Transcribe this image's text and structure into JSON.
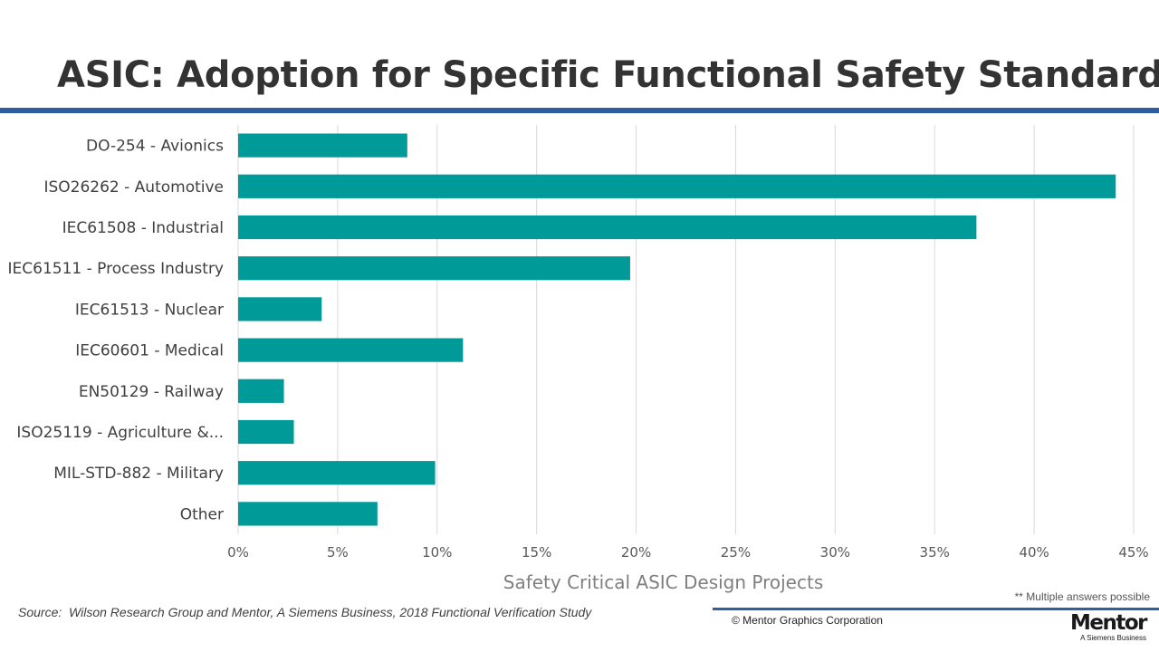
{
  "title": "ASIC: Adoption for Specific Functional Safety Standards",
  "chart_data": {
    "type": "bar",
    "orientation": "horizontal",
    "categories": [
      "DO-254 - Avionics",
      "ISO26262 - Automotive",
      "IEC61508 - Industrial",
      "IEC61511 - Process Industry",
      "IEC61513 - Nuclear",
      "IEC60601 - Medical",
      "EN50129 - Railway",
      "ISO25119 - Agriculture &...",
      "MIL-STD-882 - Military",
      "Other"
    ],
    "values": [
      8.5,
      44.1,
      37.1,
      19.7,
      4.2,
      11.3,
      2.3,
      2.8,
      9.9,
      7.0
    ],
    "xlabel": "Safety Critical ASIC Design Projects",
    "ylabel": "",
    "xlim": [
      0,
      45
    ],
    "ticks": [
      "0%",
      "5%",
      "10%",
      "15%",
      "20%",
      "25%",
      "30%",
      "35%",
      "40%",
      "45%"
    ],
    "bar_color": "#009b98",
    "grid": "vertical"
  },
  "note": "** Multiple answers possible",
  "source": "Source:  Wilson Research Group and Mentor, A Siemens Business, 2018 Functional Verification Study",
  "copyright": "© Mentor Graphics Corporation",
  "logo": {
    "name": "Mentor",
    "tagline": "A Siemens Business"
  }
}
